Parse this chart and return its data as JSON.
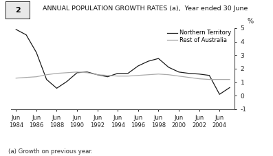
{
  "title": "ANNUAL POPULATION GROWTH RATES (a),  Year ended 30 June",
  "footnote": "(a) Growth on previous year.",
  "box_label": "2",
  "ylabel": "%",
  "ylim": [
    -1,
    5
  ],
  "yticks": [
    -1,
    0,
    1,
    2,
    3,
    4,
    5
  ],
  "years": [
    1984,
    1985,
    1986,
    1987,
    1988,
    1989,
    1990,
    1991,
    1992,
    1993,
    1994,
    1995,
    1996,
    1997,
    1998,
    1999,
    2000,
    2001,
    2002,
    2003,
    2004,
    2005
  ],
  "nt_values": [
    4.9,
    4.5,
    3.2,
    1.2,
    0.55,
    1.05,
    1.7,
    1.75,
    1.55,
    1.4,
    1.65,
    1.65,
    2.2,
    2.55,
    2.75,
    2.1,
    1.75,
    1.65,
    1.6,
    1.5,
    0.1,
    0.6
  ],
  "roa_values": [
    1.3,
    1.35,
    1.4,
    1.55,
    1.65,
    1.7,
    1.75,
    1.7,
    1.55,
    1.5,
    1.45,
    1.45,
    1.5,
    1.55,
    1.6,
    1.55,
    1.45,
    1.35,
    1.25,
    1.2,
    1.2,
    1.2
  ],
  "nt_color": "#1a1a1a",
  "roa_color": "#aaaaaa",
  "xtick_years": [
    1984,
    1986,
    1988,
    1990,
    1992,
    1994,
    1996,
    1998,
    2000,
    2002,
    2004
  ],
  "legend_nt": "Northern Territory",
  "legend_roa": "Rest of Australia",
  "bg_color": "#ffffff"
}
